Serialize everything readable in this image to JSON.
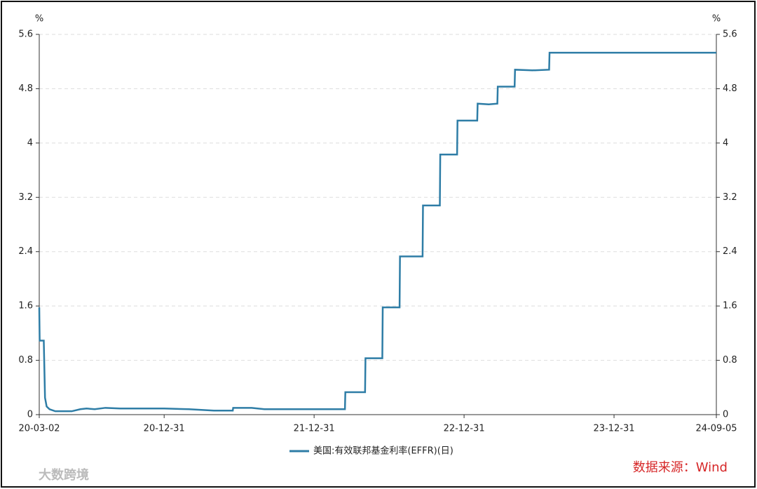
{
  "chart_data": {
    "type": "line",
    "y_unit_label": "%",
    "x": [
      "20-03-02",
      "20-03-03",
      "20-03-13",
      "20-03-16",
      "20-03-20",
      "20-03-27",
      "20-04-10",
      "20-05-20",
      "20-06-10",
      "20-06-25",
      "20-07-15",
      "20-08-10",
      "20-09-15",
      "20-12-31",
      "21-03-01",
      "21-05-01",
      "21-06-16",
      "21-06-17",
      "21-08-01",
      "21-09-01",
      "22-03-16",
      "22-03-17",
      "22-05-04",
      "22-05-05",
      "22-06-15",
      "22-06-16",
      "22-07-27",
      "22-07-28",
      "22-09-21",
      "22-09-22",
      "22-11-02",
      "22-11-03",
      "22-12-14",
      "22-12-15",
      "23-02-01",
      "23-02-02",
      "23-03-01",
      "23-03-22",
      "23-03-23",
      "23-05-03",
      "23-05-04",
      "23-06-15",
      "23-07-26",
      "23-07-27",
      "24-09-05"
    ],
    "series": [
      {
        "name": "美国:有效联邦基金利率(EFFR)(日)",
        "color": "#2e7da6",
        "values": [
          1.58,
          1.09,
          1.09,
          0.25,
          0.12,
          0.08,
          0.05,
          0.05,
          0.08,
          0.09,
          0.08,
          0.1,
          0.09,
          0.09,
          0.08,
          0.06,
          0.06,
          0.1,
          0.1,
          0.08,
          0.08,
          0.33,
          0.33,
          0.83,
          0.83,
          1.58,
          1.58,
          2.33,
          2.33,
          3.08,
          3.08,
          3.83,
          3.83,
          4.33,
          4.33,
          4.58,
          4.57,
          4.58,
          4.83,
          4.83,
          5.08,
          5.07,
          5.08,
          5.33,
          5.33
        ]
      }
    ],
    "xlim": [
      "20-03-02",
      "24-09-05"
    ],
    "xticks": [
      "20-03-02",
      "20-12-31",
      "21-12-31",
      "22-12-31",
      "23-12-31",
      "24-09-05"
    ],
    "ylim": [
      0,
      5.6
    ],
    "yticks": [
      0,
      0.8,
      1.6,
      2.4,
      3.2,
      4,
      4.8,
      5.6
    ],
    "grid": true,
    "legend": "bottom",
    "source": "数据来源：Wind",
    "watermark": "大数跨境"
  }
}
